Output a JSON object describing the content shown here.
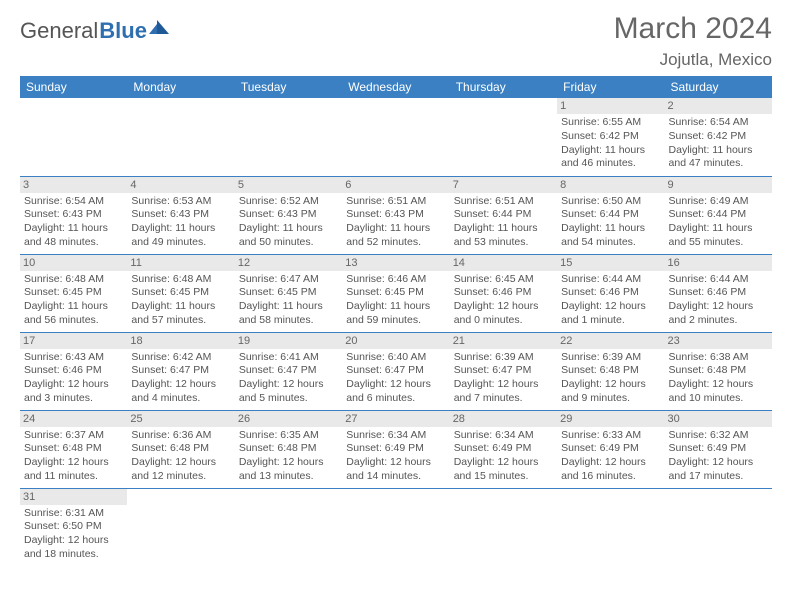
{
  "brand": {
    "part1": "General",
    "part2": "Blue"
  },
  "title": "March 2024",
  "location": "Jojutla, Mexico",
  "colors": {
    "header_bg": "#3a80c3",
    "header_text": "#ffffff",
    "daynum_bg": "#e9e9e9",
    "text": "#555555",
    "border": "#3a80c3"
  },
  "day_headers": [
    "Sunday",
    "Monday",
    "Tuesday",
    "Wednesday",
    "Thursday",
    "Friday",
    "Saturday"
  ],
  "weeks": [
    [
      null,
      null,
      null,
      null,
      null,
      {
        "d": "1",
        "sr": "Sunrise: 6:55 AM",
        "ss": "Sunset: 6:42 PM",
        "dl1": "Daylight: 11 hours",
        "dl2": "and 46 minutes."
      },
      {
        "d": "2",
        "sr": "Sunrise: 6:54 AM",
        "ss": "Sunset: 6:42 PM",
        "dl1": "Daylight: 11 hours",
        "dl2": "and 47 minutes."
      }
    ],
    [
      {
        "d": "3",
        "sr": "Sunrise: 6:54 AM",
        "ss": "Sunset: 6:43 PM",
        "dl1": "Daylight: 11 hours",
        "dl2": "and 48 minutes."
      },
      {
        "d": "4",
        "sr": "Sunrise: 6:53 AM",
        "ss": "Sunset: 6:43 PM",
        "dl1": "Daylight: 11 hours",
        "dl2": "and 49 minutes."
      },
      {
        "d": "5",
        "sr": "Sunrise: 6:52 AM",
        "ss": "Sunset: 6:43 PM",
        "dl1": "Daylight: 11 hours",
        "dl2": "and 50 minutes."
      },
      {
        "d": "6",
        "sr": "Sunrise: 6:51 AM",
        "ss": "Sunset: 6:43 PM",
        "dl1": "Daylight: 11 hours",
        "dl2": "and 52 minutes."
      },
      {
        "d": "7",
        "sr": "Sunrise: 6:51 AM",
        "ss": "Sunset: 6:44 PM",
        "dl1": "Daylight: 11 hours",
        "dl2": "and 53 minutes."
      },
      {
        "d": "8",
        "sr": "Sunrise: 6:50 AM",
        "ss": "Sunset: 6:44 PM",
        "dl1": "Daylight: 11 hours",
        "dl2": "and 54 minutes."
      },
      {
        "d": "9",
        "sr": "Sunrise: 6:49 AM",
        "ss": "Sunset: 6:44 PM",
        "dl1": "Daylight: 11 hours",
        "dl2": "and 55 minutes."
      }
    ],
    [
      {
        "d": "10",
        "sr": "Sunrise: 6:48 AM",
        "ss": "Sunset: 6:45 PM",
        "dl1": "Daylight: 11 hours",
        "dl2": "and 56 minutes."
      },
      {
        "d": "11",
        "sr": "Sunrise: 6:48 AM",
        "ss": "Sunset: 6:45 PM",
        "dl1": "Daylight: 11 hours",
        "dl2": "and 57 minutes."
      },
      {
        "d": "12",
        "sr": "Sunrise: 6:47 AM",
        "ss": "Sunset: 6:45 PM",
        "dl1": "Daylight: 11 hours",
        "dl2": "and 58 minutes."
      },
      {
        "d": "13",
        "sr": "Sunrise: 6:46 AM",
        "ss": "Sunset: 6:45 PM",
        "dl1": "Daylight: 11 hours",
        "dl2": "and 59 minutes."
      },
      {
        "d": "14",
        "sr": "Sunrise: 6:45 AM",
        "ss": "Sunset: 6:46 PM",
        "dl1": "Daylight: 12 hours",
        "dl2": "and 0 minutes."
      },
      {
        "d": "15",
        "sr": "Sunrise: 6:44 AM",
        "ss": "Sunset: 6:46 PM",
        "dl1": "Daylight: 12 hours",
        "dl2": "and 1 minute."
      },
      {
        "d": "16",
        "sr": "Sunrise: 6:44 AM",
        "ss": "Sunset: 6:46 PM",
        "dl1": "Daylight: 12 hours",
        "dl2": "and 2 minutes."
      }
    ],
    [
      {
        "d": "17",
        "sr": "Sunrise: 6:43 AM",
        "ss": "Sunset: 6:46 PM",
        "dl1": "Daylight: 12 hours",
        "dl2": "and 3 minutes."
      },
      {
        "d": "18",
        "sr": "Sunrise: 6:42 AM",
        "ss": "Sunset: 6:47 PM",
        "dl1": "Daylight: 12 hours",
        "dl2": "and 4 minutes."
      },
      {
        "d": "19",
        "sr": "Sunrise: 6:41 AM",
        "ss": "Sunset: 6:47 PM",
        "dl1": "Daylight: 12 hours",
        "dl2": "and 5 minutes."
      },
      {
        "d": "20",
        "sr": "Sunrise: 6:40 AM",
        "ss": "Sunset: 6:47 PM",
        "dl1": "Daylight: 12 hours",
        "dl2": "and 6 minutes."
      },
      {
        "d": "21",
        "sr": "Sunrise: 6:39 AM",
        "ss": "Sunset: 6:47 PM",
        "dl1": "Daylight: 12 hours",
        "dl2": "and 7 minutes."
      },
      {
        "d": "22",
        "sr": "Sunrise: 6:39 AM",
        "ss": "Sunset: 6:48 PM",
        "dl1": "Daylight: 12 hours",
        "dl2": "and 9 minutes."
      },
      {
        "d": "23",
        "sr": "Sunrise: 6:38 AM",
        "ss": "Sunset: 6:48 PM",
        "dl1": "Daylight: 12 hours",
        "dl2": "and 10 minutes."
      }
    ],
    [
      {
        "d": "24",
        "sr": "Sunrise: 6:37 AM",
        "ss": "Sunset: 6:48 PM",
        "dl1": "Daylight: 12 hours",
        "dl2": "and 11 minutes."
      },
      {
        "d": "25",
        "sr": "Sunrise: 6:36 AM",
        "ss": "Sunset: 6:48 PM",
        "dl1": "Daylight: 12 hours",
        "dl2": "and 12 minutes."
      },
      {
        "d": "26",
        "sr": "Sunrise: 6:35 AM",
        "ss": "Sunset: 6:48 PM",
        "dl1": "Daylight: 12 hours",
        "dl2": "and 13 minutes."
      },
      {
        "d": "27",
        "sr": "Sunrise: 6:34 AM",
        "ss": "Sunset: 6:49 PM",
        "dl1": "Daylight: 12 hours",
        "dl2": "and 14 minutes."
      },
      {
        "d": "28",
        "sr": "Sunrise: 6:34 AM",
        "ss": "Sunset: 6:49 PM",
        "dl1": "Daylight: 12 hours",
        "dl2": "and 15 minutes."
      },
      {
        "d": "29",
        "sr": "Sunrise: 6:33 AM",
        "ss": "Sunset: 6:49 PM",
        "dl1": "Daylight: 12 hours",
        "dl2": "and 16 minutes."
      },
      {
        "d": "30",
        "sr": "Sunrise: 6:32 AM",
        "ss": "Sunset: 6:49 PM",
        "dl1": "Daylight: 12 hours",
        "dl2": "and 17 minutes."
      }
    ],
    [
      {
        "d": "31",
        "sr": "Sunrise: 6:31 AM",
        "ss": "Sunset: 6:50 PM",
        "dl1": "Daylight: 12 hours",
        "dl2": "and 18 minutes."
      },
      null,
      null,
      null,
      null,
      null,
      null
    ]
  ]
}
